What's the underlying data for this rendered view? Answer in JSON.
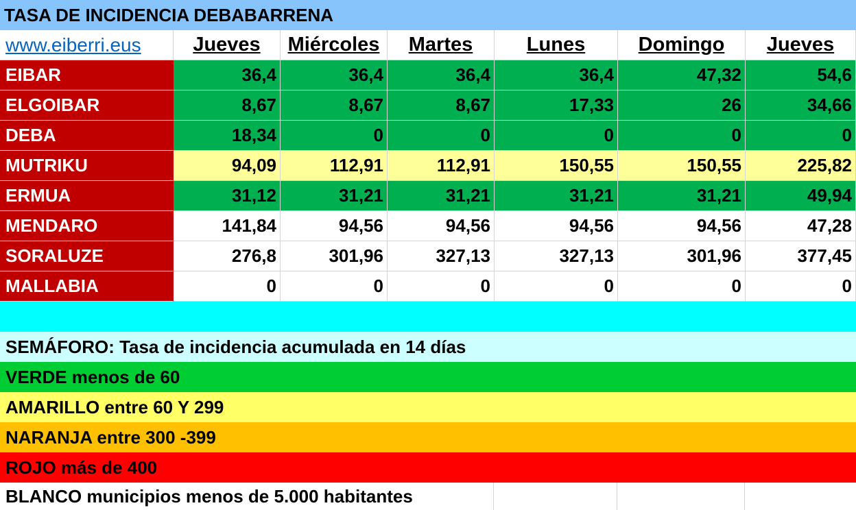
{
  "title": "TASA DE INCIDENCIA DEBABARRENA",
  "link": "www.eiberri.eus",
  "days": [
    "Jueves",
    "Miércoles",
    "Martes",
    "Lunes",
    "Domingo",
    "Jueves"
  ],
  "colors": {
    "title": "#87c4fb",
    "muni": "#c00000",
    "green": "#00b050",
    "yellow": "#ffff99",
    "white": "#ffffff",
    "cyan": "#00ffff",
    "light_cyan": "#ccffff",
    "verde": "#00cc33",
    "amarillo": "#ffff66",
    "naranja": "#ffc000",
    "rojo": "#ff0000"
  },
  "rows": [
    {
      "name": "EIBAR",
      "level": "green",
      "values": [
        "36,4",
        "36,4",
        "36,4",
        "36,4",
        "47,32",
        "54,6"
      ]
    },
    {
      "name": "ELGOIBAR",
      "level": "green",
      "values": [
        "8,67",
        "8,67",
        "8,67",
        "17,33",
        "26",
        "34,66"
      ]
    },
    {
      "name": "DEBA",
      "level": "green",
      "values": [
        "18,34",
        "0",
        "0",
        "0",
        "0",
        "0"
      ]
    },
    {
      "name": "MUTRIKU",
      "level": "yellow",
      "values": [
        "94,09",
        "112,91",
        "112,91",
        "150,55",
        "150,55",
        "225,82"
      ]
    },
    {
      "name": "ERMUA",
      "level": "green",
      "values": [
        "31,12",
        "31,21",
        "31,21",
        "31,21",
        "31,21",
        "49,94"
      ]
    },
    {
      "name": "MENDARO",
      "level": "white",
      "values": [
        "141,84",
        "94,56",
        "94,56",
        "94,56",
        "94,56",
        "47,28"
      ]
    },
    {
      "name": "SORALUZE",
      "level": "white",
      "values": [
        "276,8",
        "301,96",
        "327,13",
        "327,13",
        "301,96",
        "377,45"
      ]
    },
    {
      "name": "MALLABIA",
      "level": "white",
      "values": [
        "0",
        "0",
        "0",
        "0",
        "0",
        "0"
      ]
    }
  ],
  "legend": {
    "semaforo": "SEMÁFORO:  Tasa de incidencia acumulada en 14 días",
    "verde": "VERDE menos de 60",
    "amarillo": "AMARILLO entre 60 Y 299",
    "naranja": "NARANJA entre 300 -399",
    "rojo": "ROJO más de 400",
    "blanco": "BLANCO municipios menos de 5.000 habitantes"
  }
}
